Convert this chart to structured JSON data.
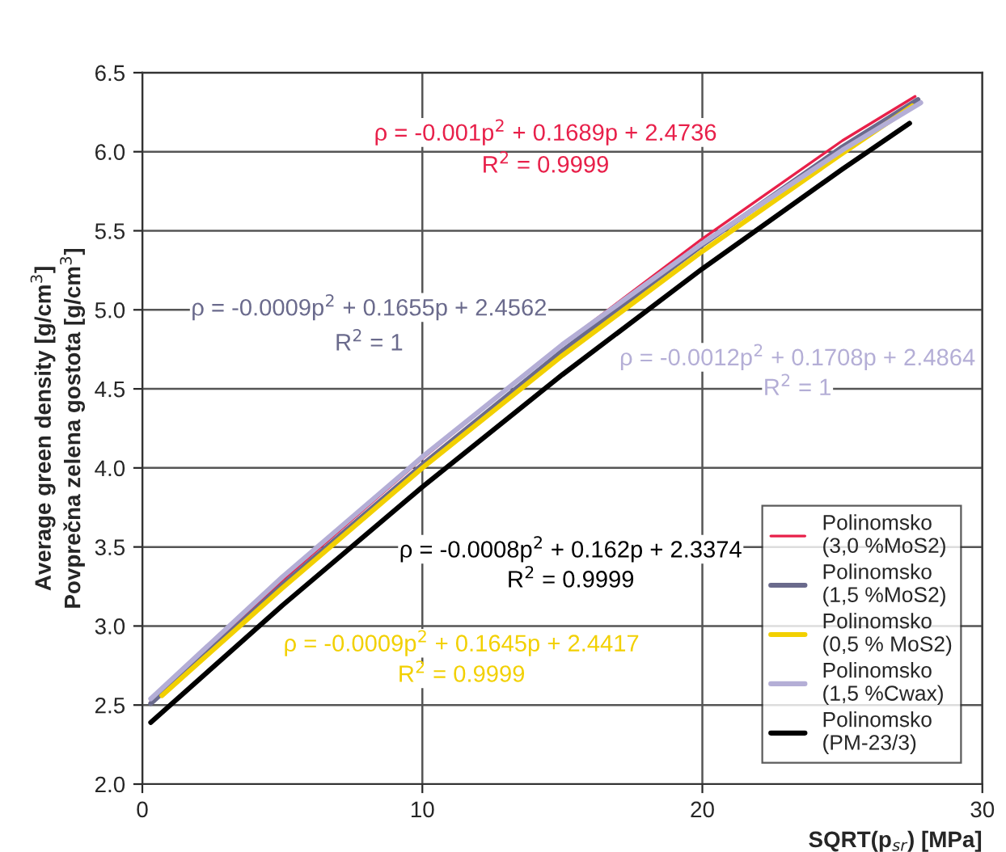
{
  "chart_data": {
    "type": "line",
    "xlabel": "SQRT(p$_{sr}$) [MPa]",
    "ylabel": "Average green density [g/cm$^{3}$]\nPovprečna zelena gostota [g/cm$^{3}$]",
    "series": [
      {
        "name": "Polinomsko\n(3,0 %MoS2)",
        "color": "#e8204a",
        "x": [
          0.3,
          5,
          10,
          15,
          20,
          25,
          27.6
        ],
        "values": [
          2.52,
          3.29,
          4.06,
          4.78,
          5.45,
          6.07,
          6.35
        ]
      },
      {
        "name": "Polinomsko\n(1,5 %MoS2)",
        "color": "#6a6a8c",
        "x": [
          0.3,
          5,
          10,
          15,
          20,
          25,
          27.7
        ],
        "values": [
          2.51,
          3.26,
          4.02,
          4.74,
          5.41,
          6.03,
          6.33
        ]
      },
      {
        "name": "Polinomsko\n(0,5 % MoS2)",
        "color": "#f2d000",
        "x": [
          0.7,
          5,
          10,
          15,
          20,
          25,
          27.5
        ],
        "values": [
          2.56,
          3.24,
          4.0,
          4.71,
          5.37,
          5.99,
          6.29
        ]
      },
      {
        "name": "Polinomsko\n(1,5 %Cwax)",
        "color": "#b4aed6",
        "x": [
          0.3,
          5,
          10,
          15,
          20,
          25,
          27.8
        ],
        "values": [
          2.54,
          3.31,
          4.07,
          4.78,
          5.42,
          6.01,
          6.31
        ]
      },
      {
        "name": "Polinomsko\n(PM-23/3)",
        "color": "#000000",
        "x": [
          0.3,
          5,
          10,
          15,
          20,
          25,
          27.4
        ],
        "values": [
          2.39,
          3.13,
          3.88,
          4.59,
          5.26,
          5.89,
          6.18
        ]
      }
    ],
    "xlim": [
      0,
      30
    ],
    "xticks": [
      0,
      10,
      20,
      30
    ],
    "ylim": [
      2.0,
      6.5
    ],
    "yticks": [
      {
        "value": 2.0,
        "label": "2.0"
      },
      {
        "value": 2.5,
        "label": "2.5"
      },
      {
        "value": 3.0,
        "label": "3.0"
      },
      {
        "value": 3.5,
        "label": "3.5"
      },
      {
        "value": 4.0,
        "label": "4.0"
      },
      {
        "value": 4.5,
        "label": "4.5"
      },
      {
        "value": 5.0,
        "label": "5.0"
      },
      {
        "value": 5.5,
        "label": "5.5"
      },
      {
        "value": 6.0,
        "label": "6.0"
      },
      {
        "value": 6.5,
        "label": "6.5"
      }
    ],
    "annotations": [
      "ρ = -0.001p$^{2}$ + 0.1689p + 2.4736",
      "R$^{2}$ = 0.9999",
      "ρ = -0.0009p$^{2}$ + 0.1655p + 2.4562",
      "R$^{2}$ = 1",
      "ρ = -0.0012p$^{2}$ + 0.1708p + 2.4864",
      "R$^{2}$ = 1",
      "ρ = -0.0008p$^{2}$ + 0.162p + 2.3374",
      "R$^{2}$ = 0.9999",
      "ρ = -0.0009p$^{2}$ + 0.1645p + 2.4417",
      "R$^{2}$ = 0.9999"
    ],
    "grid": true,
    "legend": "bottom right",
    "line_style": "solid",
    "marker": "none"
  }
}
